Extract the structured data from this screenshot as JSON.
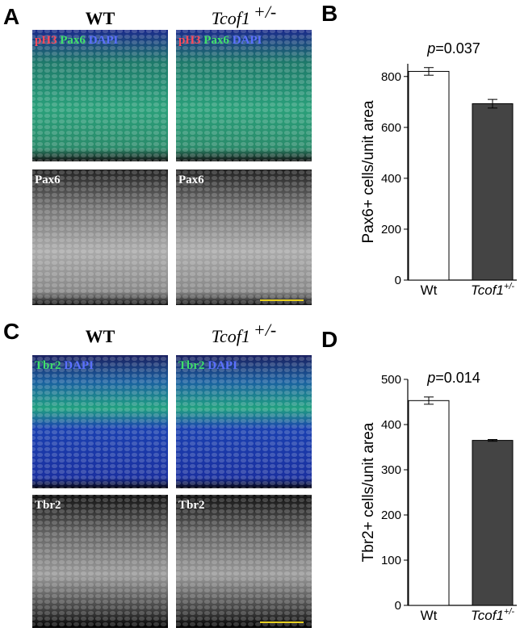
{
  "panels": {
    "labels": [
      "A",
      "B",
      "C",
      "D"
    ],
    "A": {
      "wt": "WT",
      "mut": "Tcof1",
      "mut_sup": "+/-",
      "top_stains": [
        "pH3",
        "Pax6",
        "DAPI"
      ],
      "bottom_stain": "Pax6"
    },
    "C": {
      "wt": "WT",
      "mut": "Tcof1",
      "mut_sup": "+/-",
      "top_stains": [
        "Tbr2",
        "DAPI"
      ],
      "bottom_stain": "Tbr2"
    }
  },
  "chart_data": [
    {
      "type": "bar",
      "title_italic": "p",
      "title": "=0.037",
      "y_label": "Pax6+ cells/unit area",
      "categories": [
        "Wt",
        "Tcof1"
      ],
      "category_superscripts": [
        null,
        "+/-"
      ],
      "values": [
        820,
        693
      ],
      "errors": [
        15,
        17
      ],
      "colors": [
        "#ffffff",
        "#444444"
      ],
      "ylim": [
        0,
        850
      ],
      "yticks": [
        0,
        200,
        400,
        600,
        800
      ]
    },
    {
      "type": "bar",
      "title_italic": "p",
      "title": "=0.014",
      "y_label": "Tbr2+ cells/unit area",
      "categories": [
        "Wt",
        "Tcof1"
      ],
      "category_superscripts": [
        null,
        "+/-"
      ],
      "values": [
        453,
        365
      ],
      "errors": [
        8,
        2
      ],
      "colors": [
        "#ffffff",
        "#444444"
      ],
      "ylim": [
        0,
        500
      ],
      "yticks": [
        0,
        100,
        200,
        300,
        400,
        500
      ]
    }
  ]
}
